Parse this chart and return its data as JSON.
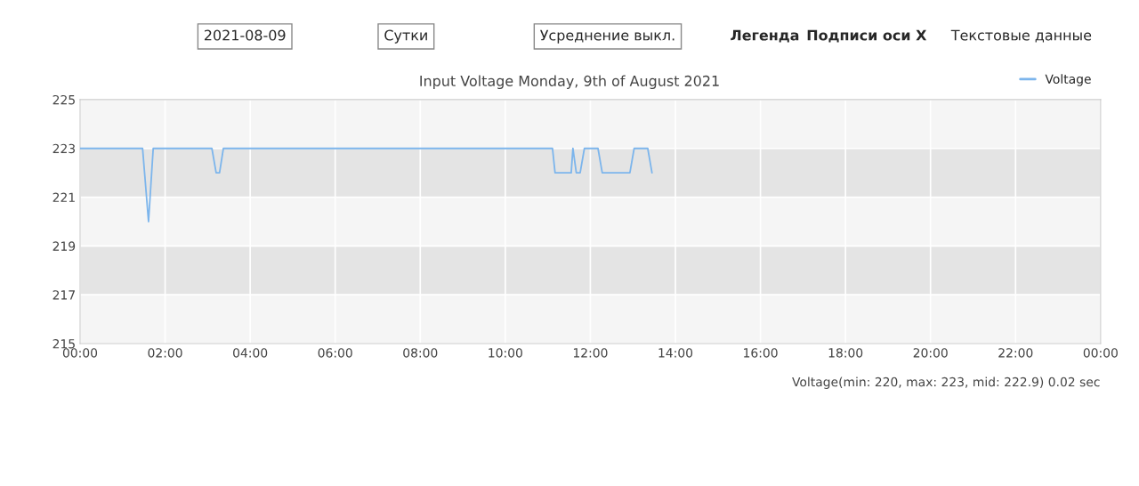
{
  "chart_data": {
    "type": "line",
    "title": "Input Voltage Monday, 9th of August 2021",
    "annotations": [
      "2021-08-09",
      "Сутки",
      "Усреднение выкл.",
      "Легенда",
      "Подписи оси X",
      "Текстовые данные",
      "Voltage(min: 220, max: 223, mid: 222.9) 0.02 sec"
    ],
    "series": [
      {
        "name": "Voltage",
        "color": "#7cb5ec",
        "x": [
          0,
          1.47,
          1.61,
          1.72,
          3.1,
          3.2,
          3.28,
          3.37,
          11.11,
          11.17,
          11.55,
          11.59,
          11.67,
          11.76,
          11.86,
          12.18,
          12.28,
          12.93,
          13.03,
          13.35,
          13.45
        ],
        "values": [
          223,
          223,
          220,
          223,
          223,
          222,
          222,
          223,
          223,
          222,
          222,
          223,
          222,
          222,
          223,
          223,
          222,
          222,
          223,
          223,
          222
        ]
      }
    ],
    "xlim": [
      0,
      24
    ],
    "xticks": [
      {
        "value": 0,
        "label": "00:00"
      },
      {
        "value": 2,
        "label": "02:00"
      },
      {
        "value": 4,
        "label": "04:00"
      },
      {
        "value": 6,
        "label": "06:00"
      },
      {
        "value": 8,
        "label": "08:00"
      },
      {
        "value": 10,
        "label": "10:00"
      },
      {
        "value": 12,
        "label": "12:00"
      },
      {
        "value": 14,
        "label": "14:00"
      },
      {
        "value": 16,
        "label": "16:00"
      },
      {
        "value": 18,
        "label": "18:00"
      },
      {
        "value": 20,
        "label": "20:00"
      },
      {
        "value": 22,
        "label": "22:00"
      },
      {
        "value": 24,
        "label": "00:00"
      }
    ],
    "ylim": [
      215,
      225
    ],
    "yticks": [
      215,
      217,
      219,
      221,
      223,
      225
    ],
    "bands": [
      {
        "axis": "y",
        "from": 221,
        "to": 223,
        "color": "#e4e4e4"
      },
      {
        "axis": "y",
        "from": 217,
        "to": 219,
        "color": "#e4e4e4"
      }
    ],
    "grid": true,
    "legend": "top right",
    "line_style": "solid",
    "marker": "none"
  }
}
